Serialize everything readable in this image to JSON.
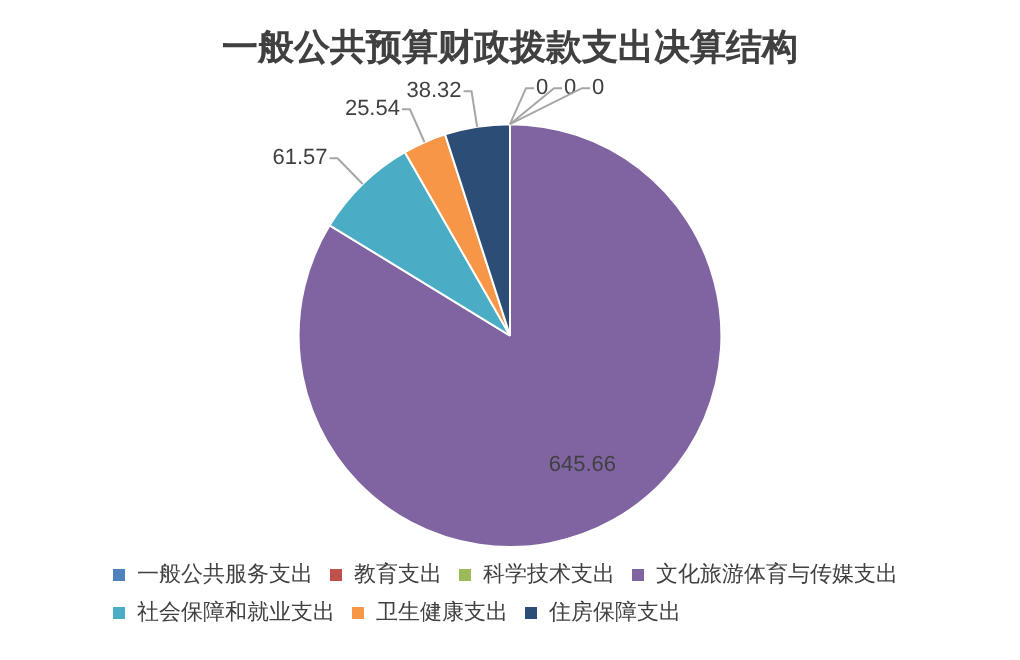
{
  "chart_data": {
    "type": "pie",
    "title": "一般公共预算财政拨款支出决算结构",
    "categories": [
      "一般公共服务支出",
      "教育支出",
      "科学技术支出",
      "文化旅游体育与传媒支出",
      "社会保障和就业支出",
      "卫生健康支出",
      "住房保障支出"
    ],
    "values": [
      0,
      0,
      0,
      645.66,
      61.57,
      25.54,
      38.32
    ],
    "colors": [
      "#4f81bd",
      "#c0504d",
      "#9bbb59",
      "#8064a2",
      "#4bacc6",
      "#f79646",
      "#2c4d75"
    ],
    "value_labels": [
      "0",
      "0",
      "0",
      "645.66",
      "61.57",
      "25.54",
      "38.32"
    ],
    "legend": "bottom"
  }
}
